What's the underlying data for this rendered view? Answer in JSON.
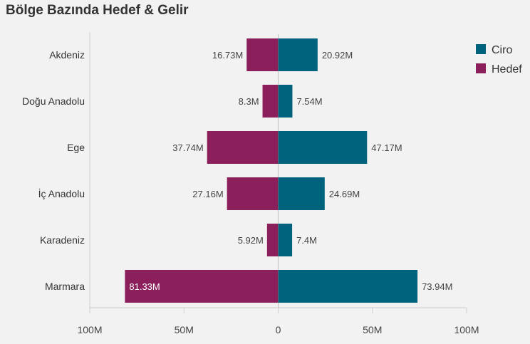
{
  "chart_data": {
    "type": "bar",
    "title": "Bölge Bazında Hedef & Gelir",
    "orientation": "horizontal-diverging",
    "categories": [
      "Akdeniz",
      "Doğu Anadolu",
      "Ege",
      "İç Anadolu",
      "Karadeniz",
      "Marmara"
    ],
    "series": [
      {
        "name": "Ciro",
        "color": "#00637d",
        "values": [
          20.92,
          7.54,
          47.17,
          24.69,
          7.4,
          73.94
        ],
        "labels": [
          "20.92M",
          "7.54M",
          "47.17M",
          "24.69M",
          "7.4M",
          "73.94M"
        ]
      },
      {
        "name": "Hedef",
        "color": "#8a1f5b",
        "values": [
          16.73,
          8.3,
          37.74,
          27.16,
          5.92,
          81.33
        ],
        "labels": [
          "16.73M",
          "8.3M",
          "37.74M",
          "27.16M",
          "5.92M",
          "81.33M"
        ]
      }
    ],
    "xlim": [
      -100,
      100
    ],
    "ticks": [
      -100,
      -50,
      0,
      50,
      100
    ],
    "tick_labels": [
      "100M",
      "50M",
      "0",
      "50M",
      "100M"
    ],
    "legend": "top-right",
    "grid": false
  }
}
